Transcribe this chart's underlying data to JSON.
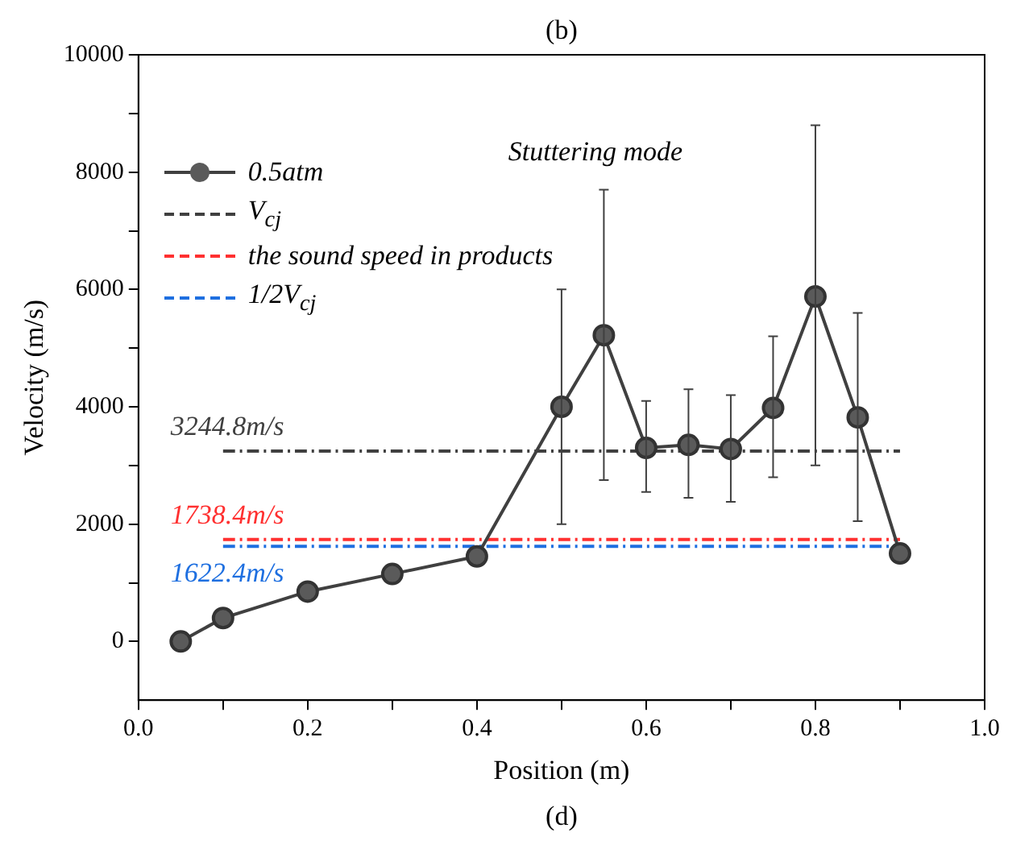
{
  "chart_data": {
    "type": "line",
    "xlabel": "Position (m)",
    "ylabel": "Velocity (m/s)",
    "annotations": [
      "(b)",
      "(d)",
      "Stuttering mode"
    ],
    "xlim": [
      0,
      1
    ],
    "xticks": [
      {
        "value": 0,
        "label": "0.0"
      },
      {
        "value": 0.1,
        "label": null
      },
      0.2,
      {
        "value": 0.3,
        "label": null
      },
      0.4,
      {
        "value": 0.5,
        "label": null
      },
      0.6,
      {
        "value": 0.7,
        "label": null
      },
      0.8,
      {
        "value": 0.9,
        "label": null
      },
      {
        "value": 1,
        "label": "1.0"
      }
    ],
    "ylim": [
      -1000,
      10000
    ],
    "yticks": [
      0,
      {
        "value": 1000,
        "label": null
      },
      2000,
      {
        "value": 3000,
        "label": null
      },
      4000,
      {
        "value": 5000,
        "label": null
      },
      6000,
      {
        "value": 7000,
        "label": null
      },
      8000,
      {
        "value": 9000,
        "label": null
      },
      10000
    ],
    "grid": false,
    "legend": "top left",
    "series": [
      {
        "name": "0.5atm",
        "color": "#404040",
        "marker": "circle",
        "line_style": "solid",
        "x": [
          0.05,
          0.1,
          0.2,
          0.3,
          0.4,
          0.5,
          0.55,
          0.6,
          0.65,
          0.7,
          0.75,
          0.8,
          0.85,
          0.9
        ],
        "values": [
          0,
          400,
          850,
          1150,
          1450,
          4000,
          5220,
          3300,
          3350,
          3280,
          3980,
          5880,
          3820,
          1500
        ],
        "errors": [
          null,
          null,
          null,
          null,
          null,
          [
            2000,
            6000
          ],
          [
            2750,
            7700
          ],
          [
            2550,
            4100
          ],
          [
            2450,
            4300
          ],
          [
            2380,
            4200
          ],
          [
            2800,
            5200
          ],
          [
            3000,
            8800
          ],
          [
            2050,
            5600
          ],
          null
        ]
      },
      {
        "name": "V$_{cj}$",
        "color": "#404040",
        "marker": "none",
        "line_style": "dashed",
        "x": [
          0.1,
          0.9
        ],
        "values": [
          3244.8,
          3244.8
        ],
        "value_labels": [
          "3244.8m/s",
          null
        ]
      },
      {
        "name": "the sound speed in products",
        "color": "#ff3030",
        "marker": "none",
        "line_style": "dashed",
        "x": [
          0.1,
          0.9
        ],
        "values": [
          1738.4,
          1738.4
        ],
        "value_labels": [
          "1738.4m/s",
          null
        ]
      },
      {
        "name": "1/2V$_{cj}$",
        "color": "#1e6fe0",
        "marker": "none",
        "line_style": "dashed",
        "x": [
          0.1,
          0.9
        ],
        "values": [
          1622.4,
          1622.4
        ],
        "value_labels": [
          "1622.4m/s",
          null
        ]
      }
    ]
  }
}
